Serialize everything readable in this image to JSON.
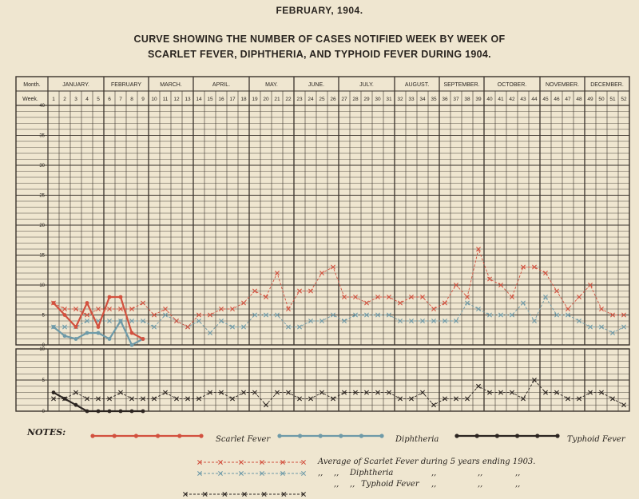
{
  "page": {
    "header": "FEBRUARY, 1904.",
    "title_line1": "CURVE SHOWING THE NUMBER OF CASES NOTIFIED WEEK BY WEEK OF",
    "title_line2": "SCARLET FEVER, DIPHTHERIA, AND TYPHOID FEVER DURING 1904."
  },
  "table": {
    "month_label": "Month.",
    "week_label": "Week."
  },
  "notes": {
    "label": "NOTES:",
    "scarlet": "Scarlet Fever",
    "diphtheria": "Diphtheria",
    "typhoid": "Typhoid Fever",
    "avg_scarlet": "Average of Scarlet Fever during  5 years ending 1903.",
    "avg_diph_quote": ",,",
    "avg_diph_quote2": ",,",
    "avg_diph": "Diphtheria",
    "avg_typh_quote": ",,",
    "avg_typh_quote2": ",,",
    "avg_typh": "Typhoid Fever",
    "ditto": ",,"
  },
  "colors": {
    "scarlet": "#d2503e",
    "diphtheria": "#6e9aa8",
    "typhoid": "#2b2420",
    "grid": "#3a332c"
  },
  "chart_data": {
    "type": "line",
    "months": [
      {
        "name": "JANUARY.",
        "weeks": 5
      },
      {
        "name": "FEBRUARY",
        "weeks": 4
      },
      {
        "name": "MARCH.",
        "weeks": 4
      },
      {
        "name": "APRIL.",
        "weeks": 5
      },
      {
        "name": "MAY.",
        "weeks": 4
      },
      {
        "name": "JUNE.",
        "weeks": 4
      },
      {
        "name": "JULY.",
        "weeks": 5
      },
      {
        "name": "AUGUST.",
        "weeks": 4
      },
      {
        "name": "SEPTEMBER.",
        "weeks": 4
      },
      {
        "name": "OCTOBER.",
        "weeks": 5
      },
      {
        "name": "NOVEMBER.",
        "weeks": 4
      },
      {
        "name": "DECEMBER.",
        "weeks": 4
      }
    ],
    "weeks": [
      1,
      2,
      3,
      4,
      5,
      6,
      7,
      8,
      9,
      10,
      11,
      12,
      13,
      14,
      15,
      16,
      17,
      18,
      19,
      20,
      21,
      22,
      23,
      24,
      25,
      26,
      27,
      28,
      29,
      30,
      31,
      32,
      33,
      34,
      35,
      36,
      37,
      38,
      39,
      40,
      41,
      42,
      43,
      44,
      45,
      46,
      47,
      48,
      49,
      50,
      51,
      52
    ],
    "upper": {
      "yticks": [
        5,
        10,
        15,
        20,
        25,
        30,
        35,
        40
      ],
      "ylim": [
        0,
        40
      ],
      "series": [
        {
          "key": "scarlet",
          "style": "solid",
          "values": [
            7,
            5,
            3,
            7,
            3,
            8,
            8,
            2,
            1
          ]
        },
        {
          "key": "diphtheria",
          "style": "solid",
          "values": [
            3,
            1.5,
            1,
            2,
            2,
            1,
            4,
            0,
            1
          ]
        },
        {
          "key": "scarlet",
          "style": "dashed",
          "values": [
            7,
            6,
            6,
            5,
            6,
            6,
            6,
            6,
            7,
            5,
            6,
            4,
            3,
            5,
            5,
            6,
            6,
            7,
            9,
            8,
            12,
            6,
            9,
            9,
            12,
            13,
            8,
            8,
            7,
            8,
            8,
            7,
            8,
            8,
            6,
            7,
            10,
            8,
            16,
            11,
            10,
            8,
            13,
            13,
            12,
            9,
            6,
            8,
            10,
            6,
            5,
            5
          ]
        },
        {
          "key": "diphtheria",
          "style": "dashed",
          "values": [
            3,
            3,
            3,
            4,
            4,
            4,
            4,
            4,
            4,
            3,
            5,
            4,
            3,
            4,
            2,
            4,
            3,
            3,
            5,
            5,
            5,
            3,
            3,
            4,
            4,
            5,
            4,
            5,
            5,
            5,
            5,
            4,
            4,
            4,
            4,
            4,
            4,
            7,
            6,
            5,
            5,
            5,
            7,
            4,
            8,
            5,
            5,
            4,
            3,
            3,
            2,
            3
          ]
        }
      ]
    },
    "lower": {
      "yticks": [
        5,
        10
      ],
      "ylim": [
        0,
        10
      ],
      "series": [
        {
          "key": "typhoid",
          "style": "solid",
          "values": [
            3,
            2,
            1,
            0,
            0,
            0,
            0,
            0,
            0
          ]
        },
        {
          "key": "typhoid",
          "style": "dashed",
          "values": [
            2,
            2,
            3,
            2,
            2,
            2,
            3,
            2,
            2,
            2,
            3,
            2,
            2,
            2,
            3,
            3,
            2,
            3,
            3,
            1,
            3,
            3,
            2,
            2,
            3,
            2,
            3,
            3,
            3,
            3,
            3,
            2,
            2,
            3,
            1,
            2,
            2,
            2,
            4,
            3,
            3,
            3,
            2,
            5,
            3,
            3,
            2,
            2,
            3,
            3,
            2,
            1
          ]
        }
      ]
    }
  }
}
